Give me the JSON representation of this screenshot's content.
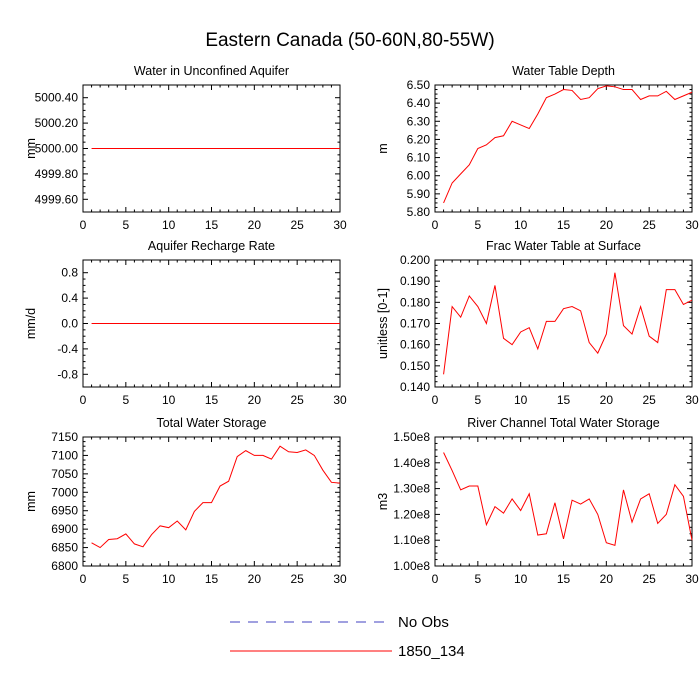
{
  "title": "Eastern Canada (50-60N,80-55W)",
  "colors": {
    "model": "#ff0000",
    "obs": "#4040c0",
    "axes": "#000000"
  },
  "legend": [
    {
      "label": "No Obs",
      "style": "dashed",
      "color": "#4040c0"
    },
    {
      "label": "1850_134",
      "style": "solid",
      "color": "#ff0000"
    }
  ],
  "chart_data": [
    {
      "type": "line",
      "title": "Water in Unconfined Aquifer",
      "ylabel": "mm",
      "xlim": [
        0,
        30
      ],
      "ylim": [
        4999.5,
        5000.5
      ],
      "xticks": [
        0,
        5,
        10,
        15,
        20,
        25,
        30
      ],
      "yticks": [
        4999.6,
        4999.8,
        5000.0,
        5000.2,
        5000.4
      ],
      "ytick_labels": [
        "4999.60",
        "4999.80",
        "5000.00",
        "5000.20",
        "5000.40"
      ],
      "series": [
        {
          "name": "1850_134",
          "x": [
            1,
            30
          ],
          "values": [
            5000.0,
            5000.0
          ]
        }
      ]
    },
    {
      "type": "line",
      "title": "Water Table Depth",
      "ylabel": "m",
      "xlim": [
        0,
        30
      ],
      "ylim": [
        5.8,
        6.5
      ],
      "xticks": [
        0,
        5,
        10,
        15,
        20,
        25,
        30
      ],
      "yticks": [
        5.8,
        5.9,
        6.0,
        6.1,
        6.2,
        6.3,
        6.4,
        6.5
      ],
      "ytick_labels": [
        "5.80",
        "5.90",
        "6.00",
        "6.10",
        "6.20",
        "6.30",
        "6.40",
        "6.50"
      ],
      "series": [
        {
          "name": "1850_134",
          "x": [
            1,
            2,
            3,
            4,
            5,
            6,
            7,
            8,
            9,
            10,
            11,
            12,
            13,
            14,
            15,
            16,
            17,
            18,
            19,
            20,
            21,
            22,
            23,
            24,
            25,
            26,
            27,
            28,
            29,
            30
          ],
          "values": [
            5.85,
            5.96,
            6.01,
            6.06,
            6.15,
            6.17,
            6.21,
            6.22,
            6.3,
            6.28,
            6.26,
            6.34,
            6.43,
            6.45,
            6.475,
            6.47,
            6.42,
            6.43,
            6.48,
            6.495,
            6.49,
            6.475,
            6.475,
            6.42,
            6.44,
            6.44,
            6.465,
            6.42,
            6.44,
            6.46
          ]
        }
      ]
    },
    {
      "type": "line",
      "title": "Aquifer Recharge Rate",
      "ylabel": "mm/d",
      "xlim": [
        0,
        30
      ],
      "ylim": [
        -1.0,
        1.0
      ],
      "xticks": [
        0,
        5,
        10,
        15,
        20,
        25,
        30
      ],
      "yticks": [
        -0.8,
        -0.4,
        0.0,
        0.4,
        0.8
      ],
      "ytick_labels": [
        "-0.8",
        "-0.4",
        "0.0",
        "0.4",
        "0.8"
      ],
      "series": [
        {
          "name": "1850_134",
          "x": [
            1,
            30
          ],
          "values": [
            0.0,
            0.0
          ]
        }
      ]
    },
    {
      "type": "line",
      "title": "Frac Water Table at Surface",
      "ylabel": "unitless [0-1]",
      "xlim": [
        0,
        30
      ],
      "ylim": [
        0.14,
        0.2
      ],
      "xticks": [
        0,
        5,
        10,
        15,
        20,
        25,
        30
      ],
      "yticks": [
        0.14,
        0.15,
        0.16,
        0.17,
        0.18,
        0.19,
        0.2
      ],
      "ytick_labels": [
        "0.140",
        "0.150",
        "0.160",
        "0.170",
        "0.180",
        "0.190",
        "0.200"
      ],
      "series": [
        {
          "name": "1850_134",
          "x": [
            1,
            2,
            3,
            4,
            5,
            6,
            7,
            8,
            9,
            10,
            11,
            12,
            13,
            14,
            15,
            16,
            17,
            18,
            19,
            20,
            21,
            22,
            23,
            24,
            25,
            26,
            27,
            28,
            29,
            30
          ],
          "values": [
            0.146,
            0.178,
            0.173,
            0.183,
            0.178,
            0.17,
            0.188,
            0.163,
            0.16,
            0.166,
            0.168,
            0.158,
            0.171,
            0.171,
            0.177,
            0.178,
            0.176,
            0.161,
            0.156,
            0.165,
            0.194,
            0.169,
            0.165,
            0.178,
            0.164,
            0.161,
            0.186,
            0.186,
            0.179,
            0.181
          ]
        }
      ]
    },
    {
      "type": "line",
      "title": "Total Water Storage",
      "ylabel": "mm",
      "xlim": [
        0,
        30
      ],
      "ylim": [
        6800,
        7150
      ],
      "xticks": [
        0,
        5,
        10,
        15,
        20,
        25,
        30
      ],
      "yticks": [
        6800,
        6850,
        6900,
        6950,
        7000,
        7050,
        7100,
        7150
      ],
      "ytick_labels": [
        "6800",
        "6850",
        "6900",
        "6950",
        "7000",
        "7050",
        "7100",
        "7150"
      ],
      "series": [
        {
          "name": "1850_134",
          "x": [
            1,
            2,
            3,
            4,
            5,
            6,
            7,
            8,
            9,
            10,
            11,
            12,
            13,
            14,
            15,
            16,
            17,
            18,
            19,
            20,
            21,
            22,
            23,
            24,
            25,
            26,
            27,
            28,
            29,
            30
          ],
          "values": [
            6863,
            6850,
            6872,
            6874,
            6887,
            6860,
            6852,
            6885,
            6909,
            6904,
            6922,
            6898,
            6948,
            6972,
            6972,
            7017,
            7030,
            7097,
            7113,
            7100,
            7100,
            7090,
            7125,
            7110,
            7108,
            7115,
            7100,
            7060,
            7027,
            7025
          ]
        }
      ]
    },
    {
      "type": "line",
      "title": "River Channel Total Water Storage",
      "ylabel": "m3",
      "xlim": [
        0,
        30
      ],
      "ylim": [
        100000000.0,
        150000000.0
      ],
      "xticks": [
        0,
        5,
        10,
        15,
        20,
        25,
        30
      ],
      "yticks": [
        100000000.0,
        110000000.0,
        120000000.0,
        130000000.0,
        140000000.0,
        150000000.0
      ],
      "ytick_labels": [
        "1.00e8",
        "1.10e8",
        "1.20e8",
        "1.30e8",
        "1.40e8",
        "1.50e8"
      ],
      "series": [
        {
          "name": "1850_134",
          "x": [
            1,
            2,
            3,
            4,
            5,
            6,
            7,
            8,
            9,
            10,
            11,
            12,
            13,
            14,
            15,
            16,
            17,
            18,
            19,
            20,
            21,
            22,
            23,
            24,
            25,
            26,
            27,
            28,
            29,
            30
          ],
          "values": [
            144000000.0,
            137000000.0,
            129500000.0,
            131000000.0,
            131000000.0,
            116000000.0,
            123000000.0,
            120500000.0,
            126000000.0,
            121500000.0,
            128000000.0,
            112000000.0,
            112500000.0,
            124500000.0,
            110500000.0,
            125500000.0,
            124000000.0,
            126000000.0,
            120000000.0,
            109000000.0,
            108000000.0,
            129500000.0,
            117000000.0,
            126000000.0,
            128000000.0,
            116500000.0,
            120000000.0,
            131500000.0,
            127000000.0,
            110000000.0
          ]
        }
      ]
    }
  ]
}
